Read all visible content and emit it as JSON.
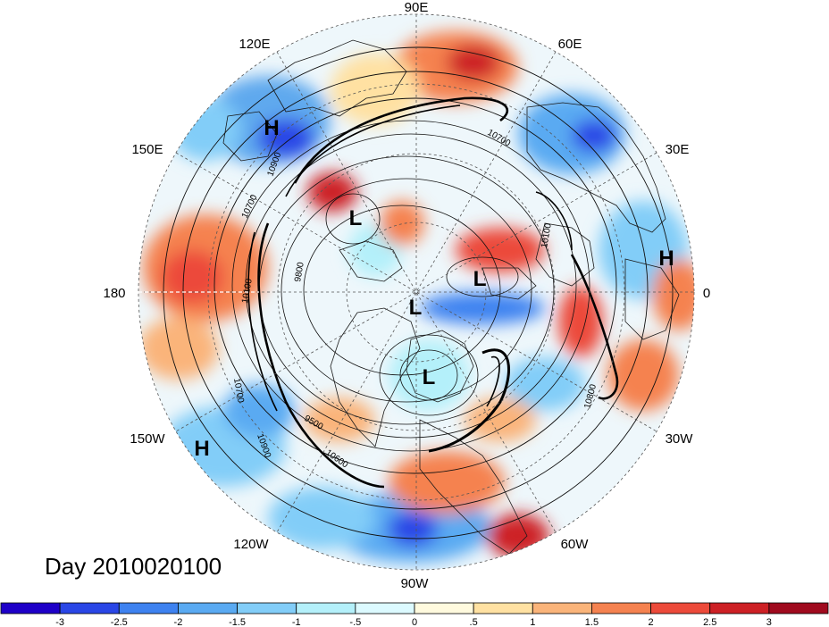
{
  "map": {
    "lon_labels": {
      "lon_90e": "90E",
      "lon_60e": "60E",
      "lon_120e": "120E",
      "lon_150e": "150E",
      "lon_30e": "30E",
      "lon_180": "180",
      "lon_0": "0",
      "lon_150w": "150W",
      "lon_30w": "30W",
      "lon_120w": "120W",
      "lon_60w": "60W",
      "lon_90w": "90W"
    },
    "markers": {
      "h_pacific_nw": "H",
      "h_europe": "H",
      "h_pacific_ne": "H",
      "l_siberia": "L",
      "l_arctic": "L",
      "l_greenland": "L",
      "l_hudson": "L"
    },
    "contour_labels": {
      "c1": "10700",
      "c2": "10900",
      "c3": "9800",
      "c4": "10100",
      "c5": "10700",
      "c6": "10900",
      "c7": "9500",
      "c8": "10600",
      "c9": "10800",
      "c10": "10700",
      "c11": "10100"
    },
    "colors": {
      "land_line": "#1a1a1a",
      "grid": "#555555",
      "contour": "#111111"
    }
  },
  "date_label": "Day 2010020100",
  "colorbar": {
    "colors": [
      "#1e00c8",
      "#2a46e6",
      "#3e82f0",
      "#5aaaf2",
      "#82cdf8",
      "#b4f0fa",
      "#dcfaff",
      "#fffade",
      "#ffe1a2",
      "#fab47a",
      "#f58250",
      "#ec4a3a",
      "#cd2025",
      "#a00a1e"
    ],
    "ticks": [
      "-3",
      "-2.5",
      "-2",
      "-1.5",
      "-1",
      "-.5",
      "0",
      ".5",
      "1",
      "1.5",
      "2",
      "2.5",
      "3"
    ]
  }
}
